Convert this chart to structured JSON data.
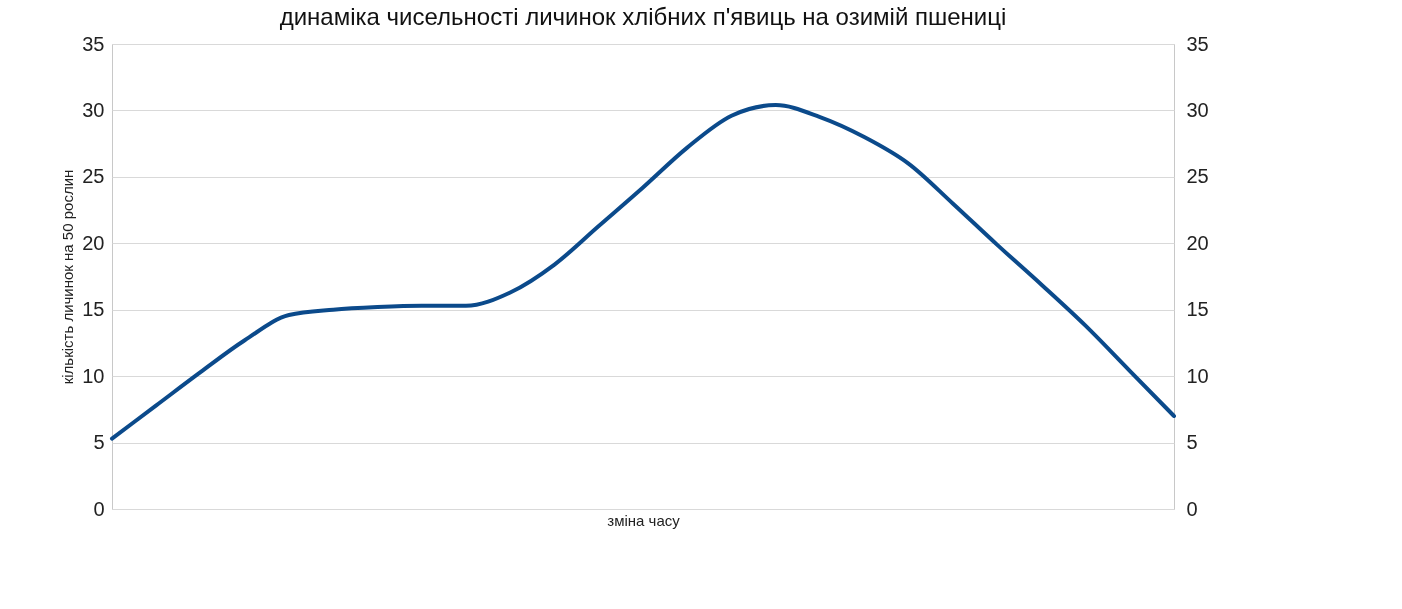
{
  "chart_data": {
    "type": "line",
    "title": "динаміка чисельності личинок хлібних п'явиць на озимій пшениці",
    "xlabel": "зміна часу",
    "ylabel": "кількість личинок на 50 рослин",
    "categories": [
      null,
      null,
      null,
      null,
      null,
      null,
      null,
      null,
      null,
      null,
      null,
      null,
      null,
      null,
      null,
      null,
      null,
      null,
      null,
      null,
      null,
      null,
      null,
      null,
      null
    ],
    "series": [
      {
        "color": "#0b4a8b",
        "values": [
          5.3,
          7.8,
          10.3,
          12.7,
          14.6,
          15.0,
          15.2,
          15.3,
          15.3,
          16.3,
          18.4,
          21.3,
          24.2,
          27.2,
          29.6,
          30.4,
          29.5,
          28.0,
          26.0,
          23.0,
          19.9,
          16.9,
          13.8,
          10.4,
          7.0
        ]
      }
    ],
    "ylim": [
      0,
      35
    ],
    "yticks": [
      0,
      5,
      10,
      15,
      20,
      25,
      30,
      35
    ],
    "y2lim": [
      0,
      35
    ],
    "y2ticks": [
      0,
      5,
      10,
      15,
      20,
      25,
      30,
      35
    ],
    "grid": "y",
    "line_style": "solid",
    "marker": "none"
  }
}
